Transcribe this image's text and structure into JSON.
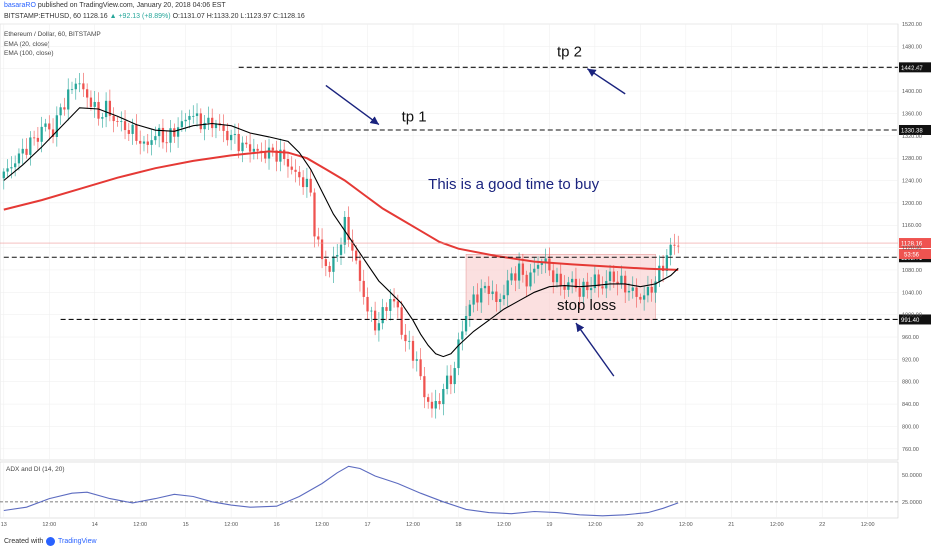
{
  "header": {
    "user": "basaraRO",
    "published": "published on TradingView.com, January 20, 2018 04:06 EST",
    "symbol": "BITSTAMP:ETHUSD, 60",
    "last": "1128.16",
    "change": "▲ +92.13 (+8.89%)",
    "ohlc": "O:1131.07 H:1133.20 L:1123.97 C:1128.16"
  },
  "legend": {
    "title": "Ethereum / Dollar, 60, BITSTAMP",
    "ema20": "EMA (20, close)",
    "ema100": "EMA (100, close)"
  },
  "footer": {
    "created": "Created with",
    "brand": "TradingView"
  },
  "colors": {
    "up": "#26a69a",
    "down": "#ef5350",
    "ema20": "#000000",
    "ema100": "#e53935",
    "adx": "#5c6bc0",
    "annotation": "#1a237e",
    "zone": "#f8c6c6"
  },
  "chart_data": {
    "type": "candlestick",
    "ylim": [
      740,
      1520
    ],
    "y_ticks": [
      760,
      800,
      840,
      880,
      920,
      960,
      1000,
      1040,
      1080,
      1120,
      1160,
      1200,
      1240,
      1280,
      1320,
      1360,
      1400,
      1440,
      1480,
      1520
    ],
    "y_tick_labels": [
      "760.00",
      "800.00",
      "840.00",
      "880.00",
      "920.00",
      "960.00",
      "1000.00",
      "1040.00",
      "1080.00",
      "1120.00",
      "1160.00",
      "1200.00",
      "1240.00",
      "1280.00",
      "1320.00",
      "1360.00",
      "1400.00",
      "1440.00",
      "1480.00",
      "1520.00"
    ],
    "x_ticks": [
      {
        "t": 0,
        "label": "13"
      },
      {
        "t": 12,
        "label": "12:00"
      },
      {
        "t": 24,
        "label": "14"
      },
      {
        "t": 36,
        "label": "12:00"
      },
      {
        "t": 48,
        "label": "15"
      },
      {
        "t": 60,
        "label": "12:00"
      },
      {
        "t": 72,
        "label": "16"
      },
      {
        "t": 84,
        "label": "12:00"
      },
      {
        "t": 96,
        "label": "17"
      },
      {
        "t": 108,
        "label": "12:00"
      },
      {
        "t": 120,
        "label": "18"
      },
      {
        "t": 132,
        "label": "12:00"
      },
      {
        "t": 144,
        "label": "19"
      },
      {
        "t": 156,
        "label": "12:00"
      },
      {
        "t": 168,
        "label": "20"
      },
      {
        "t": 180,
        "label": "12:00"
      },
      {
        "t": 192,
        "label": "21"
      },
      {
        "t": 204,
        "label": "12:00"
      },
      {
        "t": 216,
        "label": "22"
      },
      {
        "t": 228,
        "label": "12:00"
      }
    ],
    "x_range": [
      -1,
      236
    ],
    "keypoints_close": [
      [
        0,
        1250
      ],
      [
        3,
        1275
      ],
      [
        6,
        1300
      ],
      [
        9,
        1320
      ],
      [
        11,
        1340
      ],
      [
        13,
        1325
      ],
      [
        15,
        1370
      ],
      [
        17,
        1390
      ],
      [
        19,
        1420
      ],
      [
        21,
        1400
      ],
      [
        23,
        1380
      ],
      [
        25,
        1355
      ],
      [
        27,
        1370
      ],
      [
        29,
        1350
      ],
      [
        31,
        1340
      ],
      [
        33,
        1330
      ],
      [
        35,
        1320
      ],
      [
        37,
        1300
      ],
      [
        39,
        1315
      ],
      [
        41,
        1325
      ],
      [
        43,
        1310
      ],
      [
        45,
        1330
      ],
      [
        47,
        1340
      ],
      [
        49,
        1360
      ],
      [
        51,
        1350
      ],
      [
        53,
        1340
      ],
      [
        55,
        1345
      ],
      [
        57,
        1335
      ],
      [
        59,
        1320
      ],
      [
        61,
        1315
      ],
      [
        63,
        1300
      ],
      [
        65,
        1300
      ],
      [
        67,
        1290
      ],
      [
        69,
        1290
      ],
      [
        71,
        1290
      ],
      [
        73,
        1285
      ],
      [
        75,
        1270
      ],
      [
        77,
        1250
      ],
      [
        79,
        1240
      ],
      [
        81,
        1220
      ],
      [
        82,
        1150
      ],
      [
        84,
        1100
      ],
      [
        86,
        1080
      ],
      [
        88,
        1110
      ],
      [
        90,
        1160
      ],
      [
        92,
        1120
      ],
      [
        94,
        1060
      ],
      [
        96,
        1010
      ],
      [
        98,
        980
      ],
      [
        100,
        1000
      ],
      [
        102,
        1030
      ],
      [
        104,
        1010
      ],
      [
        105,
        970
      ],
      [
        107,
        940
      ],
      [
        109,
        920
      ],
      [
        110,
        880
      ],
      [
        111,
        860
      ],
      [
        113,
        830
      ],
      [
        115,
        850
      ],
      [
        117,
        880
      ],
      [
        119,
        900
      ],
      [
        120,
        950
      ],
      [
        122,
        1000
      ],
      [
        124,
        1030
      ],
      [
        126,
        1040
      ],
      [
        128,
        1050
      ],
      [
        130,
        1020
      ],
      [
        132,
        1040
      ],
      [
        134,
        1070
      ],
      [
        136,
        1080
      ],
      [
        138,
        1060
      ],
      [
        140,
        1080
      ],
      [
        142,
        1100
      ],
      [
        144,
        1080
      ],
      [
        146,
        1060
      ],
      [
        148,
        1050
      ],
      [
        150,
        1060
      ],
      [
        152,
        1040
      ],
      [
        154,
        1050
      ],
      [
        156,
        1060
      ],
      [
        158,
        1050
      ],
      [
        160,
        1070
      ],
      [
        162,
        1060
      ],
      [
        164,
        1050
      ],
      [
        166,
        1040
      ],
      [
        168,
        1030
      ],
      [
        170,
        1040
      ],
      [
        172,
        1060
      ],
      [
        174,
        1090
      ],
      [
        176,
        1120
      ],
      [
        178,
        1128
      ]
    ],
    "ema20_points": [
      [
        0,
        1240
      ],
      [
        5,
        1268
      ],
      [
        10,
        1300
      ],
      [
        15,
        1335
      ],
      [
        20,
        1370
      ],
      [
        25,
        1368
      ],
      [
        30,
        1355
      ],
      [
        35,
        1340
      ],
      [
        40,
        1330
      ],
      [
        45,
        1328
      ],
      [
        50,
        1338
      ],
      [
        55,
        1342
      ],
      [
        60,
        1338
      ],
      [
        65,
        1325
      ],
      [
        70,
        1318
      ],
      [
        75,
        1310
      ],
      [
        78,
        1290
      ],
      [
        81,
        1260
      ],
      [
        84,
        1220
      ],
      [
        87,
        1180
      ],
      [
        90,
        1150
      ],
      [
        93,
        1120
      ],
      [
        96,
        1090
      ],
      [
        99,
        1060
      ],
      [
        102,
        1040
      ],
      [
        105,
        1020
      ],
      [
        108,
        990
      ],
      [
        110,
        965
      ],
      [
        112,
        945
      ],
      [
        114,
        930
      ],
      [
        116,
        925
      ],
      [
        118,
        930
      ],
      [
        120,
        945
      ],
      [
        124,
        970
      ],
      [
        128,
        990
      ],
      [
        132,
        1010
      ],
      [
        136,
        1025
      ],
      [
        140,
        1040
      ],
      [
        144,
        1050
      ],
      [
        148,
        1052
      ],
      [
        152,
        1050
      ],
      [
        156,
        1052
      ],
      [
        160,
        1055
      ],
      [
        164,
        1055
      ],
      [
        168,
        1050
      ],
      [
        172,
        1055
      ],
      [
        176,
        1070
      ],
      [
        178,
        1083
      ]
    ],
    "ema100_points": [
      [
        0,
        1188
      ],
      [
        10,
        1205
      ],
      [
        20,
        1225
      ],
      [
        30,
        1245
      ],
      [
        40,
        1262
      ],
      [
        50,
        1275
      ],
      [
        60,
        1285
      ],
      [
        70,
        1292
      ],
      [
        75,
        1290
      ],
      [
        80,
        1280
      ],
      [
        85,
        1260
      ],
      [
        90,
        1240
      ],
      [
        95,
        1215
      ],
      [
        100,
        1190
      ],
      [
        105,
        1170
      ],
      [
        110,
        1150
      ],
      [
        115,
        1130
      ],
      [
        120,
        1118
      ],
      [
        130,
        1105
      ],
      [
        140,
        1095
      ],
      [
        150,
        1090
      ],
      [
        160,
        1086
      ],
      [
        170,
        1082
      ],
      [
        178,
        1080
      ]
    ],
    "adx": {
      "label": "ADX and DI (14, 20)",
      "ylim": [
        10,
        62
      ],
      "y_ticks": [
        25,
        50
      ],
      "y_tick_labels": [
        "25.0000",
        "50.0000"
      ],
      "level_line": 25,
      "points": [
        [
          0,
          17
        ],
        [
          6,
          20
        ],
        [
          12,
          28
        ],
        [
          18,
          33
        ],
        [
          22,
          34
        ],
        [
          28,
          28
        ],
        [
          34,
          24
        ],
        [
          40,
          28
        ],
        [
          45,
          32
        ],
        [
          50,
          30
        ],
        [
          55,
          25
        ],
        [
          60,
          22
        ],
        [
          65,
          20
        ],
        [
          72,
          21
        ],
        [
          78,
          30
        ],
        [
          84,
          42
        ],
        [
          88,
          52
        ],
        [
          91,
          58
        ],
        [
          94,
          56
        ],
        [
          98,
          49
        ],
        [
          104,
          42
        ],
        [
          110,
          33
        ],
        [
          116,
          25
        ],
        [
          122,
          18
        ],
        [
          128,
          15
        ],
        [
          134,
          14
        ],
        [
          140,
          16
        ],
        [
          146,
          15
        ],
        [
          152,
          13
        ],
        [
          158,
          12
        ],
        [
          164,
          13
        ],
        [
          170,
          15
        ],
        [
          174,
          19
        ],
        [
          178,
          24
        ]
      ]
    },
    "levels": [
      {
        "price": 1442.47,
        "label": "1442.47",
        "t_start": 62
      },
      {
        "price": 1330.38,
        "label": "1330.38",
        "t_start": 76
      },
      {
        "price": 1102.71,
        "label": "1102.71",
        "t_start": 0
      },
      {
        "price": 991.4,
        "label": "991.40",
        "t_start": 15
      }
    ],
    "last_price": {
      "price": 1128.16,
      "label": "1128.16",
      "countdown": "53:56"
    },
    "zone": {
      "t_start": 122,
      "t_end": 172,
      "price_top": 1108,
      "price_bottom": 991.4
    },
    "annotations": [
      {
        "text": "tp 2",
        "t": 146,
        "price": 1462
      },
      {
        "text": "tp 1",
        "t": 105,
        "price": 1346
      },
      {
        "text": "This is a good time to buy",
        "t": 112,
        "price": 1225
      },
      {
        "text": "stop loss",
        "t": 146,
        "price": 1008
      }
    ],
    "arrows": [
      {
        "t1": 85,
        "p1": 1410,
        "t2": 99,
        "p2": 1340
      },
      {
        "t1": 164,
        "p1": 1395,
        "t2": 154,
        "p2": 1440
      },
      {
        "t1": 161,
        "p1": 890,
        "t2": 151,
        "p2": 985
      }
    ]
  }
}
